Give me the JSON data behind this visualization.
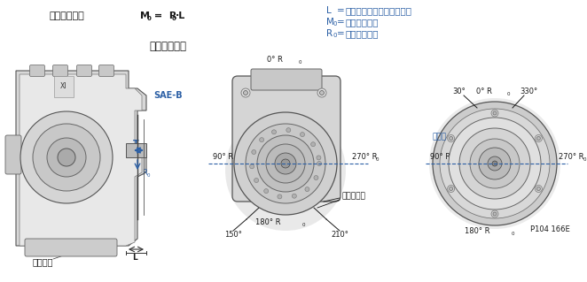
{
  "bg_color": "#ffffff",
  "blue": "#2b5fa5",
  "black": "#1a1a1a",
  "dark_gray": "#444444",
  "mid_gray": "#888888",
  "light_gray": "#cccccc",
  "very_light_gray": "#e8e8e8",
  "text_blue": "#2b5fa5",
  "formula_title": "径向负载公式",
  "formula_text": "M",
  "formula_sub": "0",
  "formula_eq": " = ",
  "formula_r": "R",
  "formula_r_sub": "0",
  "formula_dot_l": "·L",
  "subtitle": "主轴负载方向",
  "legend": [
    {
      "sym": "L",
      "sub": "",
      "eq": " = ",
      "desc": "负载作用点与安装法兰间距"
    },
    {
      "sym": "M",
      "sub": "0",
      "eq": " = ",
      "desc": "最大外部力矩"
    },
    {
      "sym": "R",
      "sub": "0",
      "eq": " = ",
      "desc": "最大径向负载"
    }
  ],
  "sae_label": "SAE-B",
  "t_label": "T",
  "mounting_label": "安装法兰",
  "insert_label": "插装式",
  "swash_label": "斜盘旋转轴",
  "code_label": "P104 166E",
  "fig_width": 6.62,
  "fig_height": 3.19,
  "dpi": 100
}
